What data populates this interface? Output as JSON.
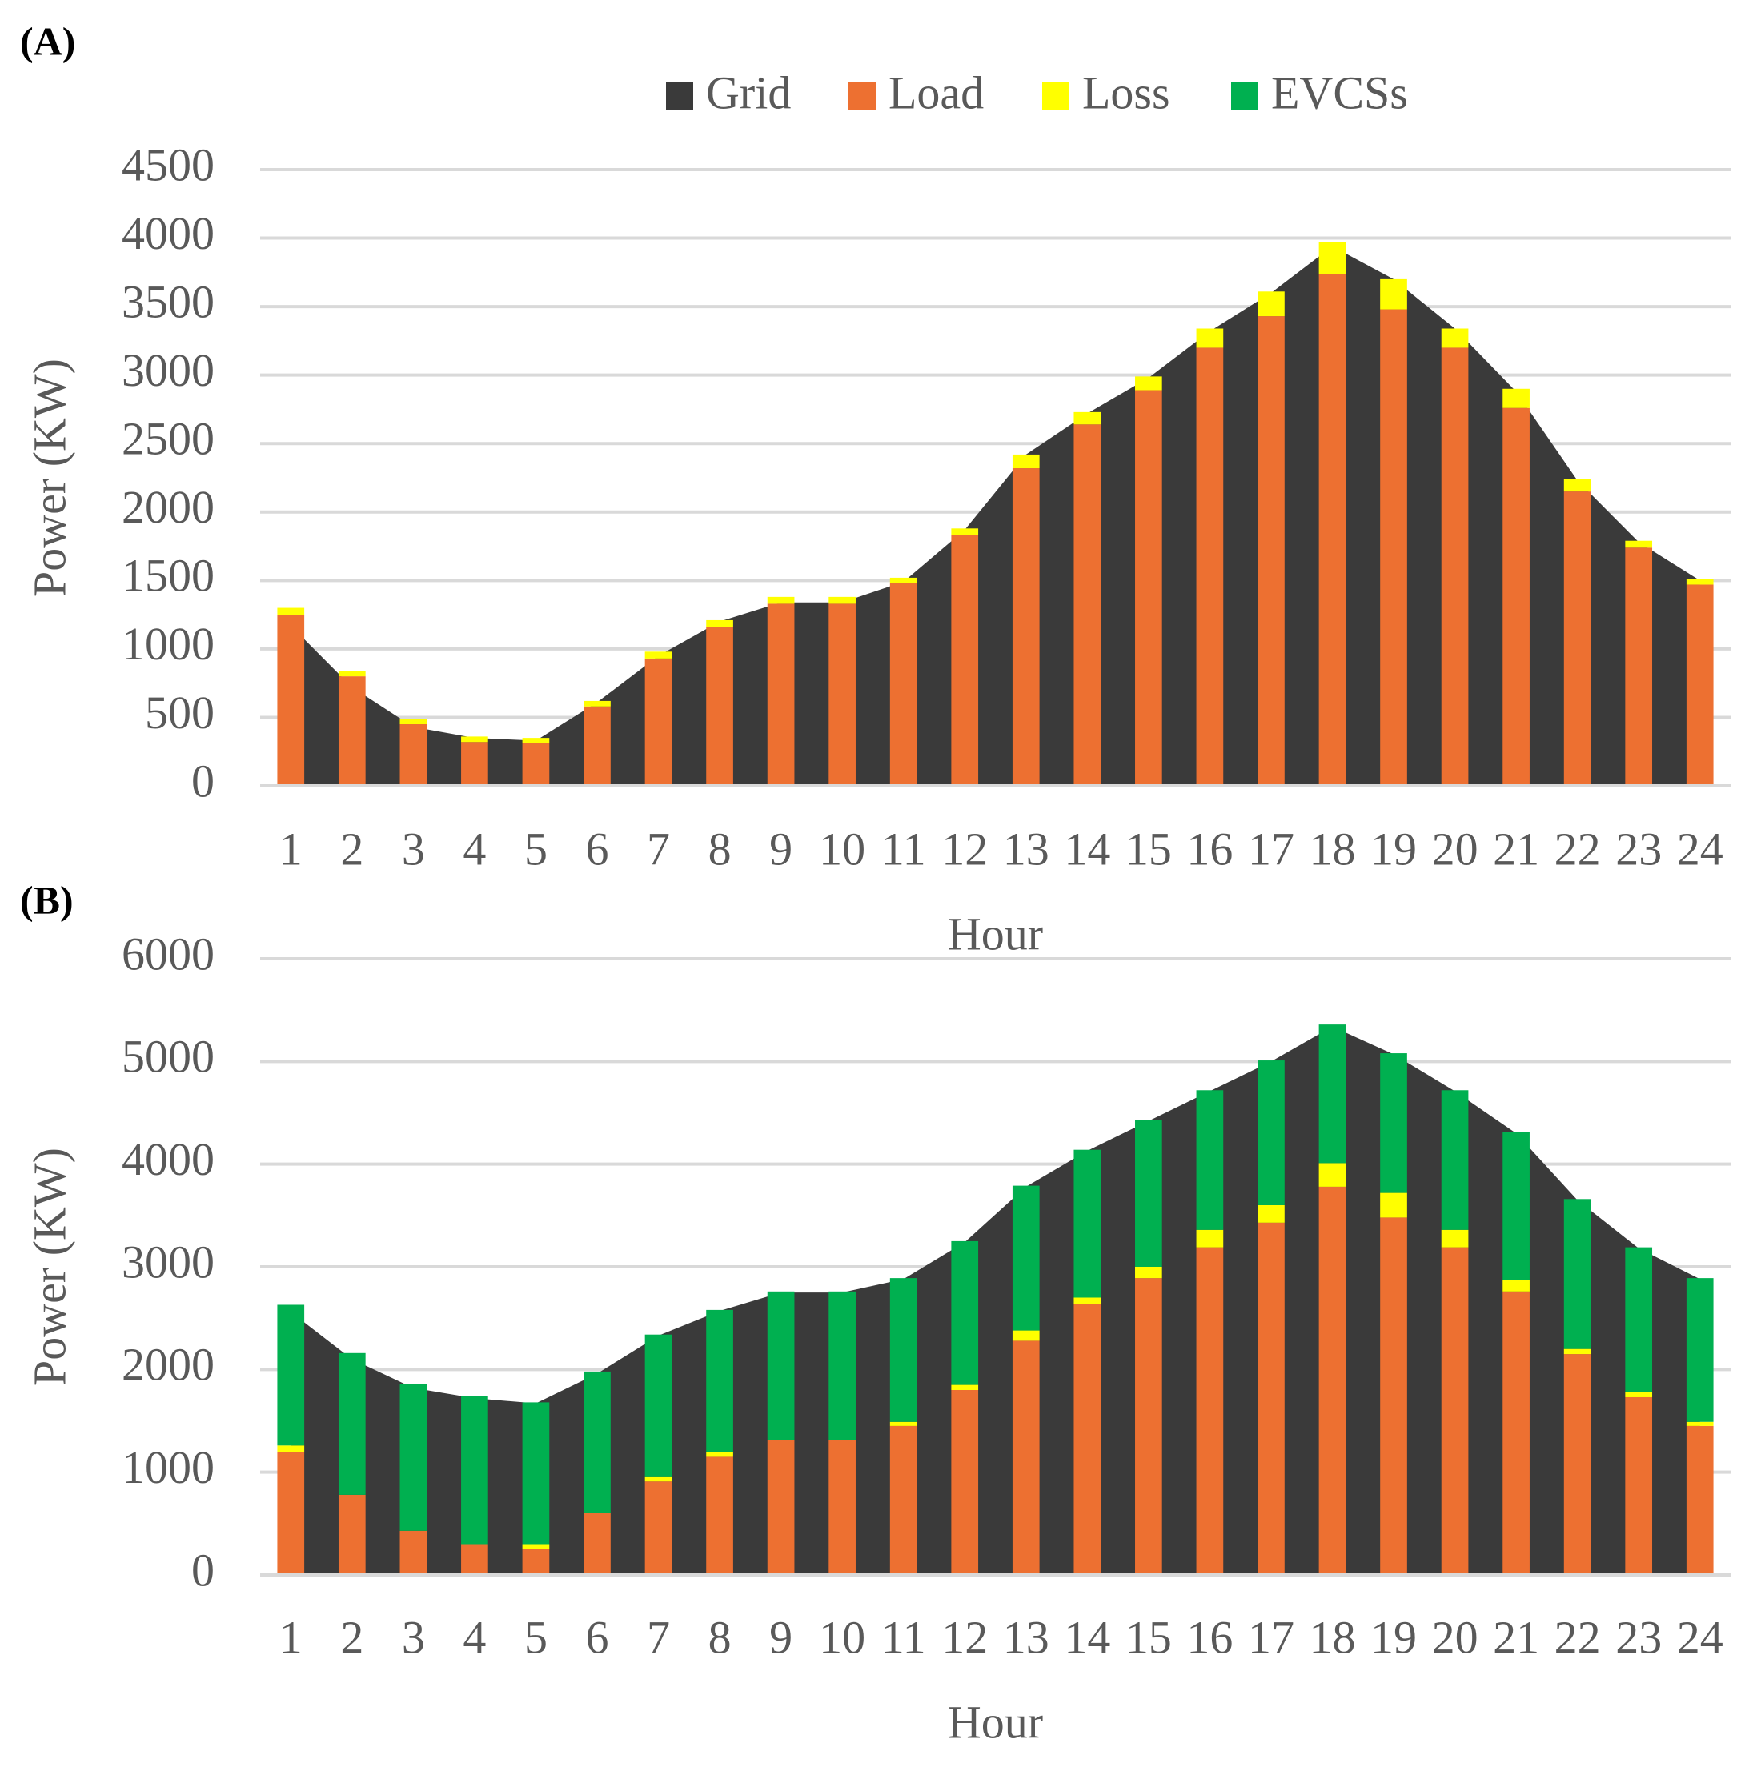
{
  "chart_data": [
    {
      "type": "bar",
      "label": "(A)",
      "xlabel": "Hour",
      "ylabel": "Power (KW)",
      "categories": [
        "1",
        "2",
        "3",
        "4",
        "5",
        "6",
        "7",
        "8",
        "9",
        "10",
        "11",
        "12",
        "13",
        "14",
        "15",
        "16",
        "17",
        "18",
        "19",
        "20",
        "21",
        "22",
        "23",
        "24"
      ],
      "ylim": [
        0,
        4500
      ],
      "yticks": [
        0,
        500,
        1000,
        1500,
        2000,
        2500,
        3000,
        3500,
        4000,
        4500
      ],
      "grid": true,
      "series": [
        {
          "name": "Grid",
          "type": "area",
          "color": "#3a3a3a",
          "values": [
            1170,
            720,
            430,
            350,
            330,
            610,
            950,
            1200,
            1340,
            1340,
            1490,
            1870,
            2420,
            2720,
            2980,
            3320,
            3600,
            3940,
            3700,
            3340,
            2880,
            2230,
            1780,
            1500
          ]
        },
        {
          "name": "Load",
          "color": "#ed7031",
          "values": [
            1250,
            800,
            450,
            320,
            310,
            580,
            930,
            1160,
            1330,
            1330,
            1480,
            1830,
            2320,
            2640,
            2890,
            3200,
            3430,
            3740,
            3480,
            3200,
            2760,
            2150,
            1740,
            1470
          ]
        },
        {
          "name": "Loss",
          "color": "#ffff00",
          "values": [
            50,
            40,
            40,
            40,
            40,
            40,
            50,
            50,
            50,
            50,
            40,
            50,
            100,
            90,
            100,
            140,
            180,
            230,
            220,
            140,
            140,
            90,
            50,
            40
          ]
        }
      ]
    },
    {
      "type": "bar",
      "label": "(B)",
      "xlabel": "Hour",
      "ylabel": "Power (KW)",
      "categories": [
        "1",
        "2",
        "3",
        "4",
        "5",
        "6",
        "7",
        "8",
        "9",
        "10",
        "11",
        "12",
        "13",
        "14",
        "15",
        "16",
        "17",
        "18",
        "19",
        "20",
        "21",
        "22",
        "23",
        "24"
      ],
      "ylim": [
        0,
        6000
      ],
      "yticks": [
        0,
        1000,
        2000,
        3000,
        4000,
        5000,
        6000
      ],
      "grid": true,
      "legend": "top",
      "series": [
        {
          "name": "Grid",
          "type": "area",
          "color": "#3a3a3a",
          "values": [
            2560,
            2100,
            1820,
            1720,
            1670,
            1960,
            2330,
            2570,
            2750,
            2750,
            2880,
            3240,
            3780,
            4130,
            4420,
            4710,
            5000,
            5340,
            5070,
            4710,
            4300,
            3650,
            3180,
            2880
          ]
        },
        {
          "name": "Load",
          "color": "#ed7031",
          "values": [
            1200,
            780,
            430,
            300,
            250,
            600,
            910,
            1150,
            1310,
            1310,
            1450,
            1800,
            2280,
            2640,
            2890,
            3190,
            3430,
            3780,
            3480,
            3190,
            2760,
            2150,
            1730,
            1450
          ]
        },
        {
          "name": "Loss",
          "color": "#ffff00",
          "values": [
            60,
            0,
            0,
            0,
            50,
            0,
            50,
            50,
            0,
            0,
            40,
            50,
            100,
            60,
            110,
            170,
            170,
            230,
            240,
            170,
            110,
            50,
            50,
            40
          ]
        },
        {
          "name": "EVCSs",
          "color": "#00b050",
          "values": [
            1370,
            1380,
            1430,
            1440,
            1380,
            1380,
            1380,
            1380,
            1450,
            1450,
            1400,
            1400,
            1410,
            1440,
            1430,
            1360,
            1410,
            1350,
            1360,
            1360,
            1440,
            1460,
            1410,
            1400
          ]
        }
      ]
    }
  ]
}
